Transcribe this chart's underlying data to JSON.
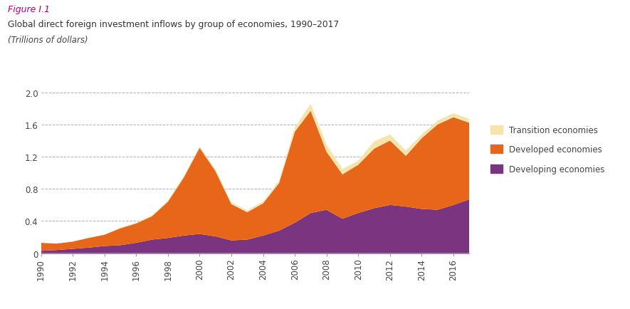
{
  "years": [
    1990,
    1991,
    1992,
    1993,
    1994,
    1995,
    1996,
    1997,
    1998,
    1999,
    2000,
    2001,
    2002,
    2003,
    2004,
    2005,
    2006,
    2007,
    2008,
    2009,
    2010,
    2011,
    2012,
    2013,
    2014,
    2015,
    2016,
    2017
  ],
  "developing": [
    0.03,
    0.04,
    0.055,
    0.07,
    0.09,
    0.1,
    0.13,
    0.17,
    0.19,
    0.22,
    0.24,
    0.21,
    0.16,
    0.17,
    0.22,
    0.28,
    0.38,
    0.5,
    0.54,
    0.43,
    0.5,
    0.56,
    0.6,
    0.58,
    0.55,
    0.54,
    0.6,
    0.67
  ],
  "developed": [
    0.1,
    0.08,
    0.09,
    0.12,
    0.14,
    0.21,
    0.24,
    0.29,
    0.45,
    0.72,
    1.07,
    0.81,
    0.45,
    0.34,
    0.4,
    0.59,
    1.13,
    1.27,
    0.72,
    0.55,
    0.6,
    0.74,
    0.8,
    0.63,
    0.88,
    1.06,
    1.09,
    0.95
  ],
  "transition": [
    0.002,
    0.002,
    0.003,
    0.005,
    0.006,
    0.01,
    0.012,
    0.013,
    0.015,
    0.017,
    0.018,
    0.022,
    0.022,
    0.022,
    0.025,
    0.025,
    0.055,
    0.085,
    0.09,
    0.065,
    0.05,
    0.09,
    0.075,
    0.065,
    0.048,
    0.048,
    0.048,
    0.048
  ],
  "colors": {
    "developing": "#7b3580",
    "developed": "#e8661a",
    "transition": "#f7e4aa"
  },
  "figure_label": "Figure I.1",
  "title": "Global direct foreign investment inflows by group of economies, 1990–2017",
  "subtitle": "(Trillions of dollars)",
  "ylim": [
    0,
    2.0
  ],
  "yticks": [
    0,
    0.4,
    0.8,
    1.2,
    1.6,
    2.0
  ],
  "xticks": [
    1990,
    1992,
    1994,
    1996,
    1998,
    2000,
    2002,
    2004,
    2006,
    2008,
    2010,
    2012,
    2014,
    2016
  ],
  "background_color": "#ffffff"
}
